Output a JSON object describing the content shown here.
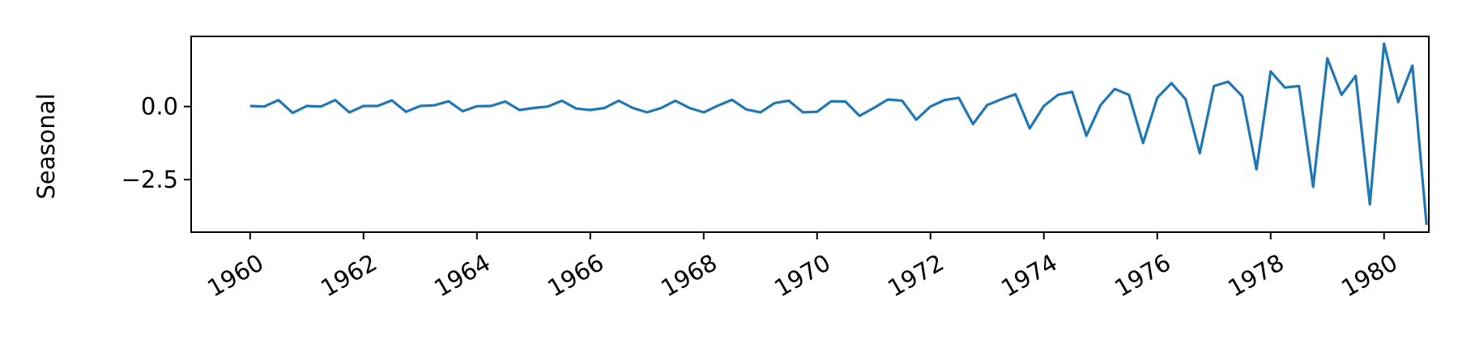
{
  "chart_data": {
    "type": "line",
    "title": "",
    "xlabel": "",
    "ylabel": "Seasonal",
    "grid": false,
    "legend": "none",
    "xlim": [
      1958.96,
      1980.79
    ],
    "ylim": [
      -4.3,
      2.4
    ],
    "xticks": [
      1960,
      1962,
      1964,
      1966,
      1968,
      1970,
      1972,
      1974,
      1976,
      1978,
      1980
    ],
    "xtick_labels": [
      "1960",
      "1962",
      "1964",
      "1966",
      "1968",
      "1970",
      "1972",
      "1974",
      "1976",
      "1978",
      "1980"
    ],
    "yticks": [
      0,
      -2.5
    ],
    "ytick_labels": [
      "0.0",
      "−2.5"
    ],
    "series": [
      {
        "color": "#1f77b4",
        "x": [
          1960.0,
          1960.25,
          1960.5,
          1960.75,
          1961.0,
          1961.25,
          1961.5,
          1961.75,
          1962.0,
          1962.25,
          1962.5,
          1962.75,
          1963.0,
          1963.25,
          1963.5,
          1963.75,
          1964.0,
          1964.25,
          1964.5,
          1964.75,
          1965.0,
          1965.25,
          1965.5,
          1965.75,
          1966.0,
          1966.25,
          1966.5,
          1966.75,
          1967.0,
          1967.25,
          1967.5,
          1967.75,
          1968.0,
          1968.25,
          1968.5,
          1968.75,
          1969.0,
          1969.25,
          1969.5,
          1969.75,
          1970.0,
          1970.25,
          1970.5,
          1970.75,
          1971.0,
          1971.25,
          1971.5,
          1971.75,
          1972.0,
          1972.25,
          1972.5,
          1972.75,
          1973.0,
          1973.25,
          1973.5,
          1973.75,
          1974.0,
          1974.25,
          1974.5,
          1974.75,
          1975.0,
          1975.25,
          1975.5,
          1975.75,
          1976.0,
          1976.25,
          1976.5,
          1976.75,
          1977.0,
          1977.25,
          1977.5,
          1977.75,
          1978.0,
          1978.25,
          1978.5,
          1978.75,
          1979.0,
          1979.25,
          1979.5,
          1979.75,
          1980.0,
          1980.25,
          1980.5,
          1980.75
        ],
        "y": [
          0.02,
          0.0,
          0.22,
          -0.22,
          0.02,
          0.0,
          0.22,
          -0.2,
          0.02,
          0.02,
          0.21,
          -0.18,
          0.02,
          0.04,
          0.18,
          -0.16,
          0.01,
          0.02,
          0.17,
          -0.12,
          -0.05,
          0.0,
          0.2,
          -0.07,
          -0.12,
          -0.05,
          0.2,
          -0.05,
          -0.2,
          -0.05,
          0.2,
          -0.05,
          -0.2,
          0.03,
          0.23,
          -0.1,
          -0.2,
          0.12,
          0.2,
          -0.2,
          -0.18,
          0.18,
          0.17,
          -0.32,
          -0.05,
          0.24,
          0.2,
          -0.45,
          0.0,
          0.22,
          0.3,
          -0.6,
          0.05,
          0.25,
          0.42,
          -0.75,
          0.02,
          0.4,
          0.5,
          -1.0,
          0.05,
          0.6,
          0.4,
          -1.25,
          0.3,
          0.8,
          0.25,
          -1.6,
          0.7,
          0.85,
          0.35,
          -2.15,
          1.2,
          0.65,
          0.7,
          -2.75,
          1.65,
          0.4,
          1.05,
          -3.35,
          2.15,
          0.15,
          1.4,
          -4.05
        ]
      }
    ]
  }
}
